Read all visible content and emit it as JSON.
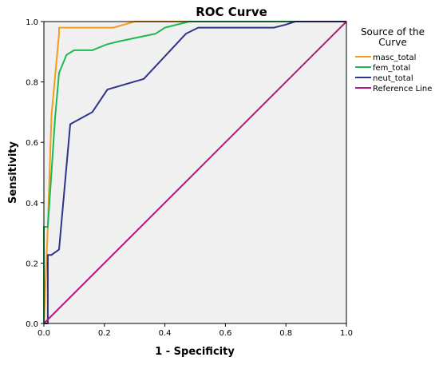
{
  "chart_data": {
    "type": "line",
    "title": "ROC Curve",
    "xlabel": "1 - Specificity",
    "ylabel": "Sensitivity",
    "xlim": [
      0,
      1
    ],
    "ylim": [
      0,
      1
    ],
    "xticks": [
      "0.0",
      "0.2",
      "0.4",
      "0.6",
      "0.8",
      "1.0"
    ],
    "yticks": [
      "0.0",
      "0.2",
      "0.4",
      "0.6",
      "0.8",
      "1.0"
    ],
    "grid": false,
    "legend_title_lines": [
      "Source of the",
      "Curve"
    ],
    "legend_position": "right",
    "plot_background": "#f0f0f0",
    "series": [
      {
        "name": "masc_total",
        "color": "#f39c1d",
        "x": [
          0.0,
          0.0,
          0.013,
          0.025,
          0.05,
          0.05,
          0.23,
          0.3,
          1.0
        ],
        "y": [
          0.0,
          0.0,
          0.32,
          0.69,
          0.96,
          0.98,
          0.98,
          1.0,
          1.0
        ]
      },
      {
        "name": "fem_total",
        "color": "#1db954",
        "x": [
          0.0,
          0.0,
          0.013,
          0.025,
          0.037,
          0.05,
          0.075,
          0.1,
          0.16,
          0.21,
          0.25,
          0.37,
          0.4,
          0.48,
          1.0
        ],
        "y": [
          0.0,
          0.32,
          0.32,
          0.5,
          0.68,
          0.83,
          0.89,
          0.905,
          0.905,
          0.925,
          0.935,
          0.96,
          0.98,
          1.0,
          1.0
        ]
      },
      {
        "name": "neut_total",
        "color": "#2e3488",
        "x": [
          0.0,
          0.013,
          0.013,
          0.025,
          0.05,
          0.087,
          0.16,
          0.21,
          0.33,
          0.47,
          0.51,
          0.76,
          0.8,
          0.83,
          1.0
        ],
        "y": [
          0.0,
          0.0,
          0.227,
          0.227,
          0.245,
          0.66,
          0.7,
          0.775,
          0.81,
          0.96,
          0.98,
          0.98,
          0.99,
          1.0,
          1.0
        ]
      },
      {
        "name": "Reference Line",
        "color": "#b0197e",
        "x": [
          0.0,
          1.0
        ],
        "y": [
          0.0,
          1.0
        ]
      }
    ]
  }
}
